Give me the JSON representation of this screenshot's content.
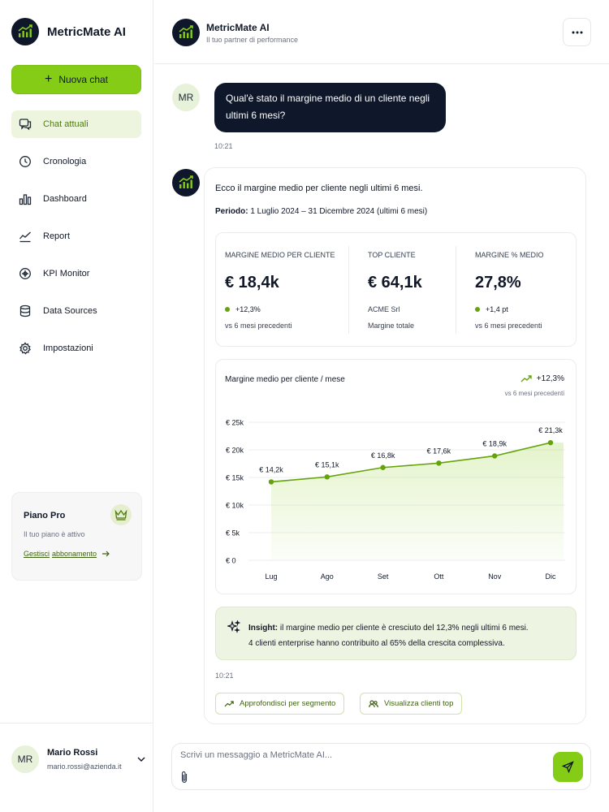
{
  "app": {
    "name": "MetricMate AI"
  },
  "sidebar": {
    "new_chat_label": "Nuova chat",
    "items": [
      {
        "label": "Chat attuali",
        "icon": "chat-icon",
        "active": true
      },
      {
        "label": "Cronologia",
        "icon": "clock-icon"
      },
      {
        "label": "Dashboard",
        "icon": "bar-chart-icon"
      },
      {
        "label": "Report",
        "icon": "trend-icon"
      },
      {
        "label": "KPI Monitor",
        "icon": "target-icon"
      },
      {
        "label": "Data Sources",
        "icon": "database-icon"
      },
      {
        "label": "Impostazioni",
        "icon": "gear-icon"
      }
    ],
    "plan": {
      "title": "Piano Pro",
      "subtitle": "Il tuo piano è attivo",
      "link_part1": "Gestisci",
      "link_part2": "abbonamento"
    },
    "user": {
      "initials": "MR",
      "name": "Mario Rossi",
      "email": "mario.rossi@azienda.it"
    }
  },
  "header": {
    "title": "MetricMate AI",
    "subtitle": "Il tuo partner di performance"
  },
  "messages": {
    "user": {
      "initials": "MR",
      "text": "Qual'è stato il margine medio di un cliente negli ultimi 6 mesi?",
      "time": "10:21"
    },
    "bot": {
      "intro": "Ecco il margine medio per cliente negli ultimi 6 mesi.",
      "period_label": "Periodo:",
      "period_value": "1 Luglio 2024 – 31 Dicembre 2024 (ultimi 6 mesi)",
      "kpis": [
        {
          "label": "MARGINE MEDIO PER CLIENTE",
          "value": "€ 18,4k",
          "delta": "+12,3%",
          "note": "vs 6 mesi precedenti"
        },
        {
          "label": "TOP CLIENTE",
          "value": "€ 64,1k",
          "delta": "ACME Srl",
          "note": "Margine totale"
        },
        {
          "label": "MARGINE % MEDIO",
          "value": "27,8%",
          "delta": "+1,4 pt",
          "note": "vs 6 mesi precedenti"
        }
      ],
      "chart": {
        "title": "Margine medio per cliente / mese",
        "delta": "+12,3%",
        "delta_note": "vs 6 mesi precedenti"
      },
      "insight_label": "Insight:",
      "insight_text": "il margine medio per cliente è cresciuto del 12,3% negli ultimi 6 mesi.",
      "insight_text2": "4 clienti enterprise hanno contribuito al 65% della crescita complessiva.",
      "time": "10:21",
      "actions": [
        "Approfondisci per segmento",
        "Visualizza clienti top"
      ]
    }
  },
  "composer": {
    "placeholder": "Scrivi un messaggio a MetricMate AI..."
  },
  "colors": {
    "accent": "#84cc16",
    "dark": "#0f172a",
    "accent_dark": "#65a30d"
  },
  "chart_data": {
    "type": "area",
    "categories": [
      "Lug",
      "Ago",
      "Set",
      "Ott",
      "Nov",
      "Dic"
    ],
    "values": [
      14.2,
      15.1,
      16.8,
      17.6,
      18.9,
      21.3
    ],
    "data_labels": [
      "€ 14,2k",
      "€ 15,1k",
      "€ 16,8k",
      "€ 17,6k",
      "€ 18,9k",
      "€ 21,3k"
    ],
    "y_ticks": [
      0,
      5,
      10,
      15,
      20,
      25
    ],
    "y_tick_labels": [
      "€ 0",
      "€ 5k",
      "€ 10k",
      "€ 15k",
      "€ 20k",
      "€ 25k"
    ],
    "ylim": [
      0,
      25
    ],
    "grid": true,
    "title": "Margine medio per cliente / mese"
  }
}
